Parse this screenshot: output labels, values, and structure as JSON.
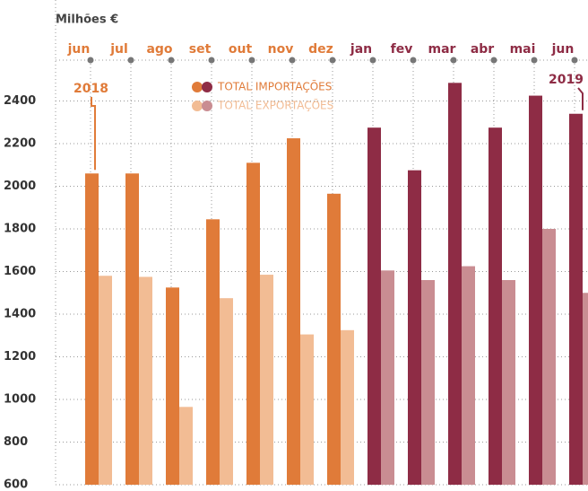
{
  "chart_data": {
    "type": "bar",
    "y_label": "Milhões €",
    "categories": [
      "jun",
      "jul",
      "ago",
      "set",
      "out",
      "nov",
      "dez",
      "jan",
      "fev",
      "mar",
      "abr",
      "mai",
      "jun"
    ],
    "category_colors": [
      "#e07b39",
      "#e07b39",
      "#e07b39",
      "#e07b39",
      "#e07b39",
      "#e07b39",
      "#e07b39",
      "#8e2c45",
      "#8e2c45",
      "#8e2c45",
      "#8e2c45",
      "#8e2c45",
      "#8e2c45"
    ],
    "annotations": [
      "2018",
      "2019"
    ],
    "series": [
      {
        "name": "TOTAL IMPORTAÇÕES",
        "colors": [
          "#e07b39",
          "#8e2c45"
        ],
        "bar_colors": [
          "#e07b39",
          "#e07b39",
          "#e07b39",
          "#e07b39",
          "#e07b39",
          "#e07b39",
          "#e07b39",
          "#8e2c45",
          "#8e2c45",
          "#8e2c45",
          "#8e2c45",
          "#8e2c45",
          "#8e2c45"
        ],
        "values": [
          2060,
          2060,
          1525,
          1845,
          2110,
          2225,
          1965,
          2275,
          2075,
          2485,
          2275,
          2425,
          2340
        ]
      },
      {
        "name": "TOTAL EXPORTAÇÕES",
        "colors": [
          "#f2bc94",
          "#c98d92"
        ],
        "bar_colors": [
          "#f2bc94",
          "#f2bc94",
          "#f2bc94",
          "#f2bc94",
          "#f2bc94",
          "#f2bc94",
          "#f2bc94",
          "#c98d92",
          "#c98d92",
          "#c98d92",
          "#c98d92",
          "#c98d92",
          "#c98d92"
        ],
        "values": [
          1580,
          1575,
          965,
          1475,
          1585,
          1305,
          1325,
          1605,
          1560,
          1625,
          1560,
          1800,
          1500
        ]
      }
    ],
    "ylim": [
      600,
      2600
    ],
    "yticks": [
      600,
      800,
      1000,
      1200,
      1400,
      1600,
      1800,
      2000,
      2200,
      2400
    ],
    "grid": true
  }
}
